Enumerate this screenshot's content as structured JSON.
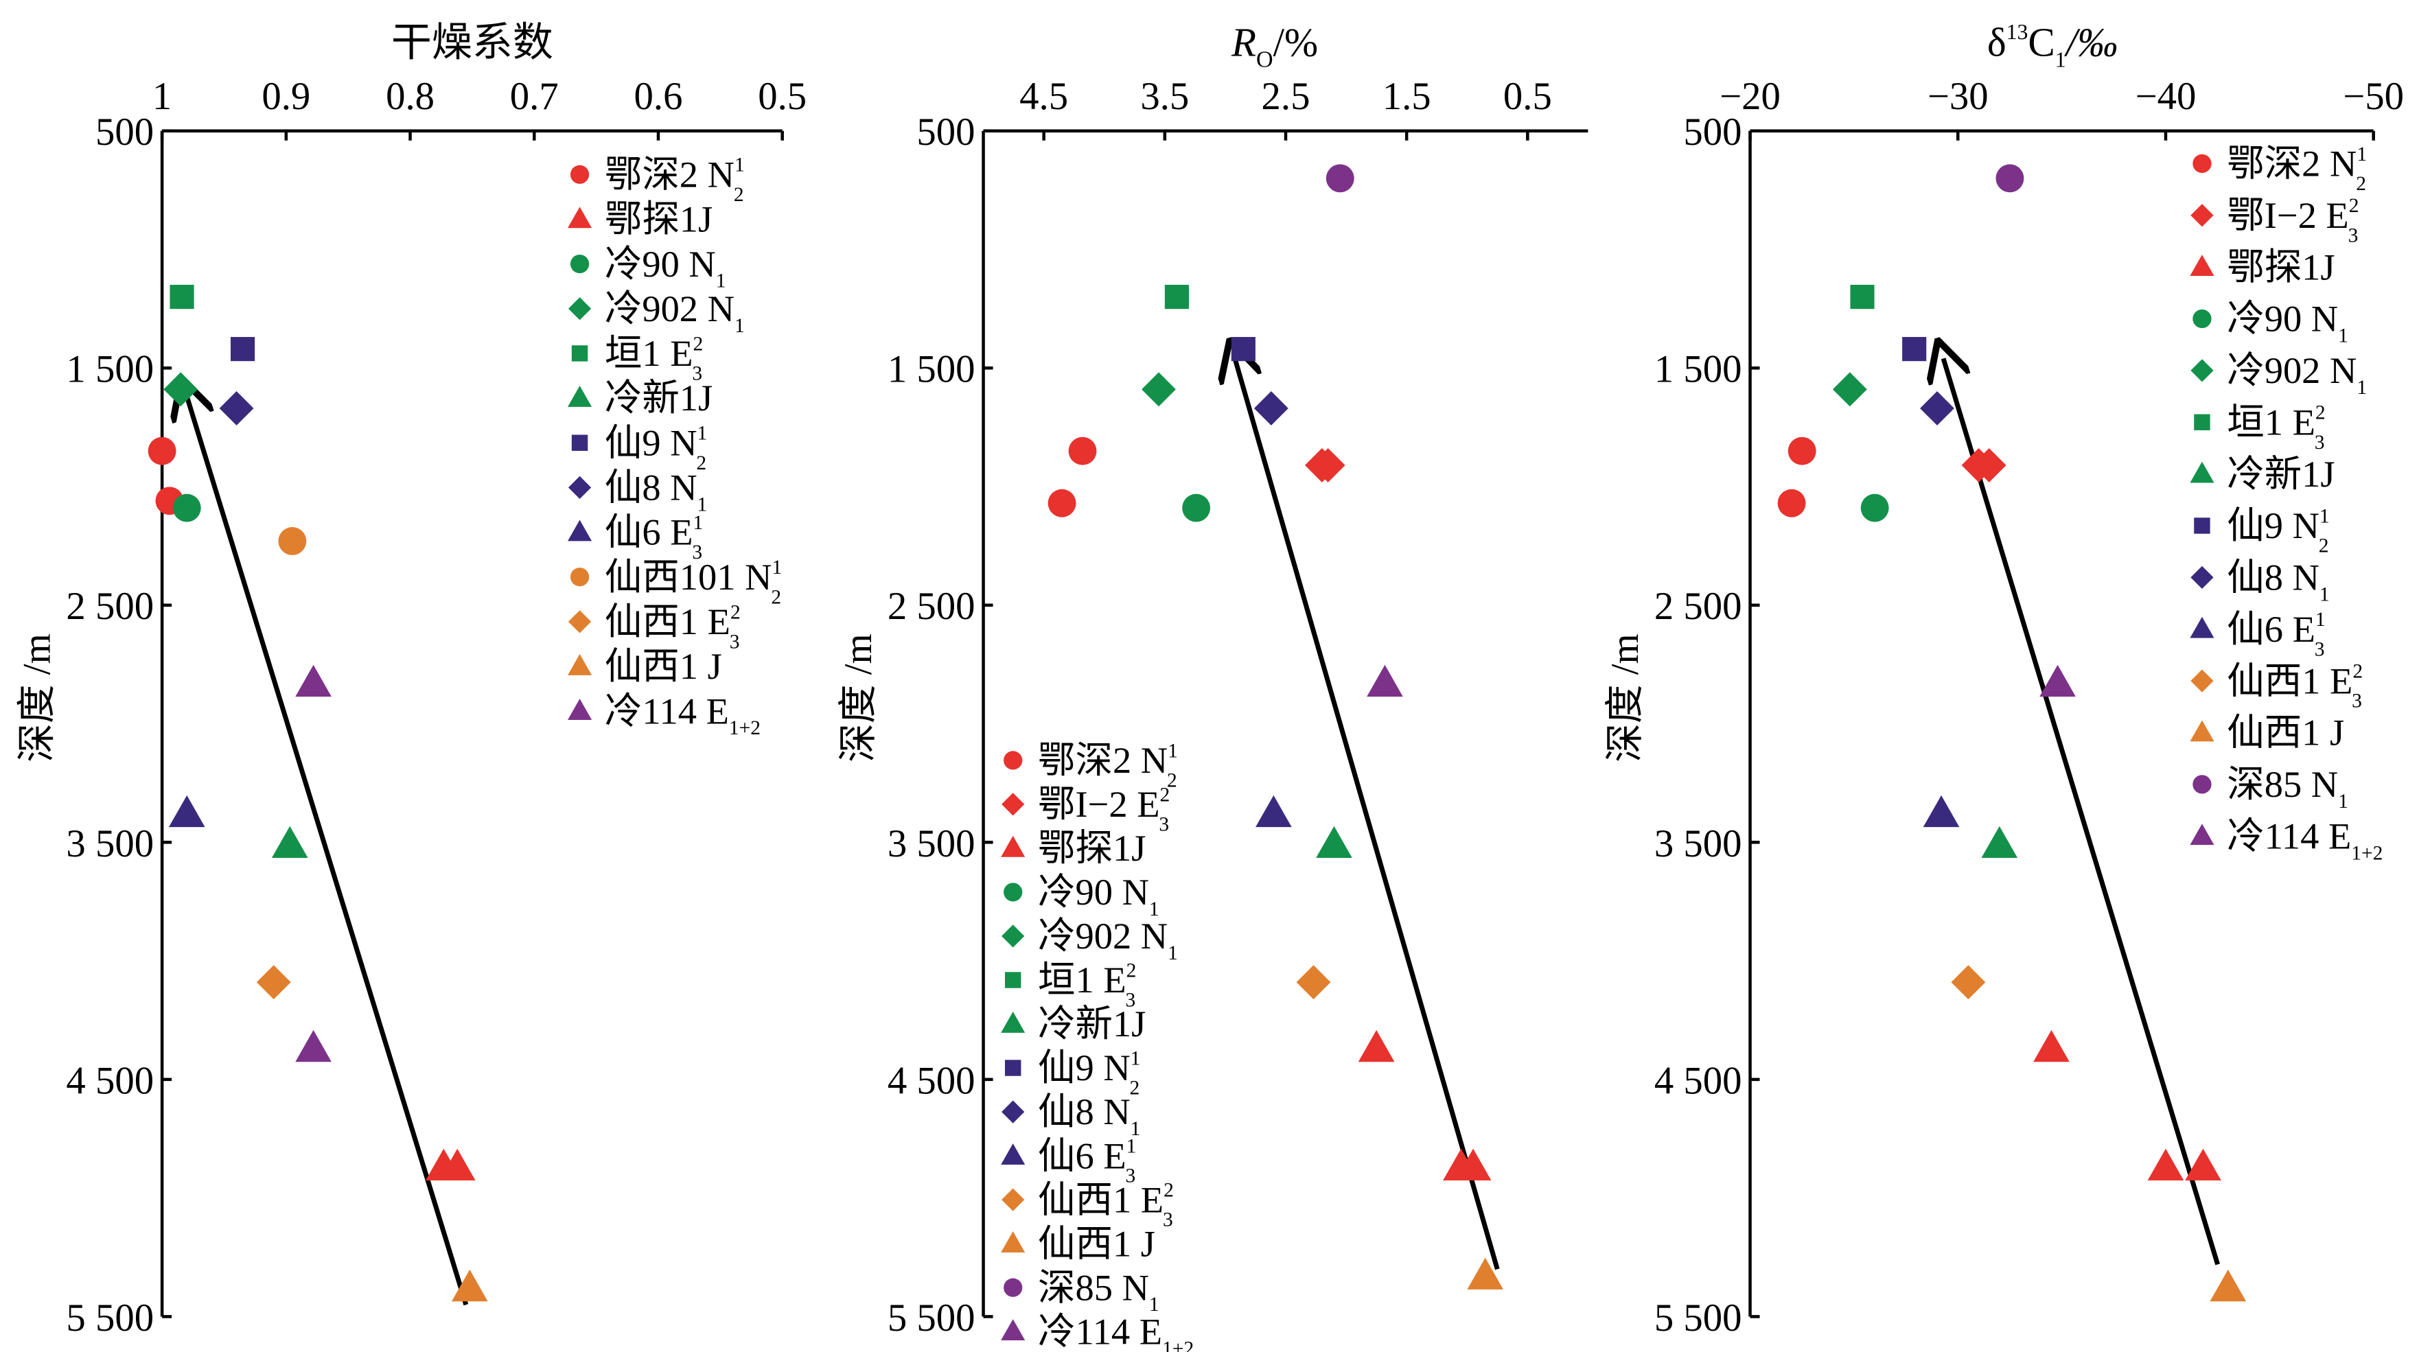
{
  "colors": {
    "red": "#e8322d",
    "green": "#13914a",
    "navy": "#3a2a7d",
    "orange": "#e0802f",
    "purple": "#7c3289"
  },
  "chart_data": [
    {
      "type": "scatter",
      "xlabel": "干燥系数",
      "ylabel": "深度 /m",
      "xlim": [
        1,
        0.5
      ],
      "ylim": [
        500,
        5500
      ],
      "x_ticks": [
        1,
        0.9,
        0.8,
        0.7,
        0.6,
        0.5
      ],
      "x_tick_labels": [
        "1",
        "0.9",
        "0.8",
        "0.7",
        "0.6",
        "0.5"
      ],
      "y_ticks": [
        500,
        1500,
        2500,
        3500,
        4500,
        5500
      ],
      "y_tick_labels": [
        "500",
        "1 500",
        "2 500",
        "3 500",
        "4 500",
        "5 500"
      ],
      "grid": false,
      "legend_position": "top-right",
      "trend_arrow": {
        "from": [
          0.755,
          5450
        ],
        "to": [
          0.98,
          1620
        ]
      },
      "series": [
        {
          "name": "鄂深2 N",
          "sub": "2",
          "sup": "1",
          "color": "red",
          "marker": "circle",
          "points": [
            [
              1.0,
              1850
            ],
            [
              0.994,
              2060
            ]
          ]
        },
        {
          "name": "鄂探1J",
          "color": "red",
          "marker": "triangle",
          "points": [
            [
              0.773,
              4870
            ],
            [
              0.762,
              4870
            ]
          ]
        },
        {
          "name": "冷90 N",
          "sub": "1",
          "color": "green",
          "marker": "circle",
          "points": [
            [
              0.98,
              2090
            ]
          ]
        },
        {
          "name": "冷902 N",
          "sub": "1",
          "color": "green",
          "marker": "diamond",
          "points": [
            [
              0.985,
              1590
            ]
          ]
        },
        {
          "name": "垣1 E",
          "sub": "3",
          "sup": "2",
          "color": "green",
          "marker": "square",
          "points": [
            [
              0.984,
              1200
            ]
          ]
        },
        {
          "name": "冷新1J",
          "color": "green",
          "marker": "triangle",
          "points": [
            [
              0.897,
              3510
            ]
          ]
        },
        {
          "name": "仙9 N",
          "sub": "2",
          "sup": "1",
          "color": "navy",
          "marker": "square",
          "points": [
            [
              0.935,
              1420
            ]
          ]
        },
        {
          "name": "仙8 N",
          "sub": "1",
          "color": "navy",
          "marker": "diamond",
          "points": [
            [
              0.94,
              1670
            ]
          ]
        },
        {
          "name": "仙6 E",
          "sub": "3",
          "sup": "1",
          "color": "navy",
          "marker": "triangle",
          "points": [
            [
              0.98,
              3380
            ]
          ]
        },
        {
          "name": "仙西101 N",
          "sub": "2",
          "sup": "1",
          "color": "orange",
          "marker": "circle",
          "points": [
            [
              0.895,
              2230
            ]
          ]
        },
        {
          "name": "仙西1 E",
          "sub": "3",
          "sup": "2",
          "color": "orange",
          "marker": "diamond",
          "points": [
            [
              0.91,
              4090
            ]
          ]
        },
        {
          "name": "仙西1 J",
          "color": "orange",
          "marker": "triangle",
          "points": [
            [
              0.752,
              5380
            ]
          ]
        },
        {
          "name": "冷114 E",
          "sub": "1+2",
          "color": "purple",
          "marker": "triangle",
          "points": [
            [
              0.878,
              2830
            ],
            [
              0.878,
              4370
            ]
          ]
        }
      ]
    },
    {
      "type": "scatter",
      "xlabel": "R",
      "xlabel_sub": "O",
      "xlabel_suffix": "/%",
      "ylabel": "深度 /m",
      "xlim": [
        5,
        0
      ],
      "ylim": [
        500,
        5500
      ],
      "x_ticks": [
        4.5,
        3.5,
        2.5,
        1.5,
        0.5
      ],
      "x_tick_labels": [
        "4.5",
        "3.5",
        "2.5",
        "1.5",
        "0.5"
      ],
      "y_ticks": [
        500,
        1500,
        2500,
        3500,
        4500,
        5500
      ],
      "y_tick_labels": [
        "500",
        "1 500",
        "2 500",
        "3 500",
        "4 500",
        "5 500"
      ],
      "grid": false,
      "legend_position": "bottom-left",
      "trend_arrow": {
        "from": [
          0.75,
          5300
        ],
        "to": [
          2.92,
          1460
        ]
      },
      "series": [
        {
          "name": "鄂深2 N",
          "sub": "2",
          "sup": "1",
          "color": "red",
          "marker": "circle",
          "points": [
            [
              4.18,
              1850
            ],
            [
              4.35,
              2070
            ]
          ]
        },
        {
          "name": "鄂I−2 E",
          "sub": "3",
          "sup": "2",
          "color": "red",
          "marker": "diamond",
          "points": [
            [
              2.2,
              1910
            ],
            [
              2.15,
              1910
            ]
          ]
        },
        {
          "name": "鄂探1J",
          "color": "red",
          "marker": "triangle",
          "points": [
            [
              1.75,
              4370
            ],
            [
              1.05,
              4870
            ],
            [
              0.95,
              4870
            ]
          ]
        },
        {
          "name": "冷90 N",
          "sub": "1",
          "color": "green",
          "marker": "circle",
          "points": [
            [
              3.24,
              2090
            ]
          ]
        },
        {
          "name": "冷902 N",
          "sub": "1",
          "color": "green",
          "marker": "diamond",
          "points": [
            [
              3.55,
              1590
            ]
          ]
        },
        {
          "name": "垣1 E",
          "sub": "3",
          "sup": "2",
          "color": "green",
          "marker": "square",
          "points": [
            [
              3.4,
              1200
            ]
          ]
        },
        {
          "name": "冷新1J",
          "color": "green",
          "marker": "triangle",
          "points": [
            [
              2.1,
              3510
            ]
          ]
        },
        {
          "name": "仙9 N",
          "sub": "2",
          "sup": "1",
          "color": "navy",
          "marker": "square",
          "points": [
            [
              2.85,
              1420
            ]
          ]
        },
        {
          "name": "仙8 N",
          "sub": "1",
          "color": "navy",
          "marker": "diamond",
          "points": [
            [
              2.62,
              1670
            ]
          ]
        },
        {
          "name": "仙6 E",
          "sub": "3",
          "sup": "1",
          "color": "navy",
          "marker": "triangle",
          "points": [
            [
              2.6,
              3380
            ]
          ]
        },
        {
          "name": "仙西1 E",
          "sub": "3",
          "sup": "2",
          "color": "orange",
          "marker": "diamond",
          "points": [
            [
              2.27,
              4090
            ]
          ]
        },
        {
          "name": "仙西1 J",
          "color": "orange",
          "marker": "triangle",
          "points": [
            [
              0.85,
              5330
            ]
          ]
        },
        {
          "name": "深85 N",
          "sub": "1",
          "color": "purple",
          "marker": "circle",
          "points": [
            [
              2.05,
              700
            ]
          ]
        },
        {
          "name": "冷114 E",
          "sub": "1+2",
          "color": "purple",
          "marker": "triangle",
          "points": [
            [
              1.68,
              2830
            ]
          ]
        }
      ]
    },
    {
      "type": "scatter",
      "xlabel": "δ",
      "xlabel_sup": "13",
      "xlabel_mid": "C",
      "xlabel_sub": "1",
      "xlabel_suffix": "/‰",
      "ylabel": "深度 /m",
      "xlim": [
        -20,
        -50
      ],
      "ylim": [
        500,
        5500
      ],
      "x_ticks": [
        -20,
        -30,
        -40,
        -50
      ],
      "x_tick_labels": [
        "−20",
        "−30",
        "−40",
        "−50"
      ],
      "y_ticks": [
        500,
        1500,
        2500,
        3500,
        4500,
        5500
      ],
      "y_tick_labels": [
        "500",
        "1 500",
        "2 500",
        "3 500",
        "4 500",
        "5 500"
      ],
      "grid": false,
      "legend_position": "top-right",
      "trend_arrow": {
        "from": [
          -42.5,
          5280
        ],
        "to": [
          -29.3,
          1460
        ]
      },
      "series": [
        {
          "name": "鄂深2 N",
          "sub": "2",
          "sup": "1",
          "color": "red",
          "marker": "circle",
          "points": [
            [
              -22.5,
              1850
            ],
            [
              -22.0,
              2070
            ]
          ]
        },
        {
          "name": "鄂I−2 E",
          "sub": "3",
          "sup": "2",
          "color": "red",
          "marker": "diamond",
          "points": [
            [
              -31.5,
              1910
            ],
            [
              -31.0,
              1910
            ]
          ]
        },
        {
          "name": "鄂探1J",
          "color": "red",
          "marker": "triangle",
          "points": [
            [
              -34.5,
              4370
            ],
            [
              -40.0,
              4870
            ],
            [
              -41.8,
              4870
            ]
          ]
        },
        {
          "name": "冷90 N",
          "sub": "1",
          "color": "green",
          "marker": "circle",
          "points": [
            [
              -26.0,
              2090
            ]
          ]
        },
        {
          "name": "冷902 N",
          "sub": "1",
          "color": "green",
          "marker": "diamond",
          "points": [
            [
              -24.8,
              1590
            ]
          ]
        },
        {
          "name": "垣1 E",
          "sub": "3",
          "sup": "2",
          "color": "green",
          "marker": "square",
          "points": [
            [
              -25.4,
              1200
            ]
          ]
        },
        {
          "name": "冷新1J",
          "color": "green",
          "marker": "triangle",
          "points": [
            [
              -32.0,
              3510
            ]
          ]
        },
        {
          "name": "仙9 N",
          "sub": "2",
          "sup": "1",
          "color": "navy",
          "marker": "square",
          "points": [
            [
              -27.9,
              1420
            ]
          ]
        },
        {
          "name": "仙8 N",
          "sub": "1",
          "color": "navy",
          "marker": "diamond",
          "points": [
            [
              -29.0,
              1670
            ]
          ]
        },
        {
          "name": "仙6 E",
          "sub": "3",
          "sup": "1",
          "color": "navy",
          "marker": "triangle",
          "points": [
            [
              -29.2,
              3380
            ]
          ]
        },
        {
          "name": "仙西1 E",
          "sub": "3",
          "sup": "2",
          "color": "orange",
          "marker": "diamond",
          "points": [
            [
              -30.5,
              4090
            ]
          ]
        },
        {
          "name": "仙西1 J",
          "color": "orange",
          "marker": "triangle",
          "points": [
            [
              -43.0,
              5380
            ]
          ]
        },
        {
          "name": "深85 N",
          "sub": "1",
          "color": "purple",
          "marker": "circle",
          "points": [
            [
              -32.5,
              700
            ]
          ]
        },
        {
          "name": "冷114 E",
          "sub": "1+2",
          "color": "purple",
          "marker": "triangle",
          "points": [
            [
              -34.8,
              2830
            ]
          ]
        }
      ]
    }
  ]
}
